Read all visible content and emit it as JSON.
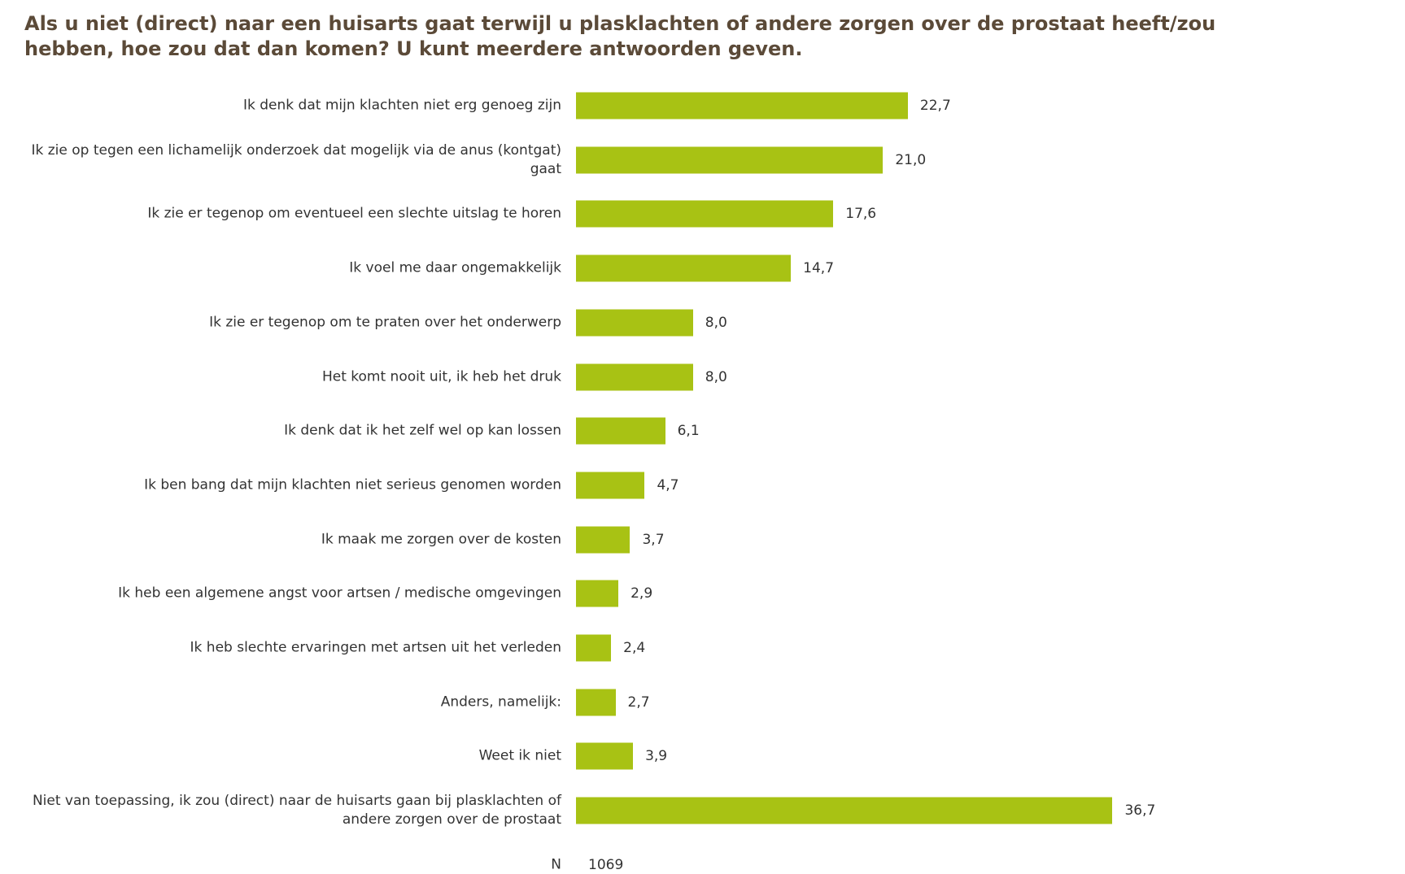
{
  "chart_data": {
    "type": "bar",
    "orientation": "horizontal",
    "title": "Als u niet (direct) naar een huisarts gaat terwijl u plasklachten of andere zorgen over de prostaat heeft/zou hebben, hoe zou dat dan komen? U kunt meerdere antwoorden geven.",
    "categories": [
      "Ik denk dat mijn klachten niet erg genoeg zijn",
      "Ik zie op tegen een lichamelijk onderzoek dat mogelijk via de anus (kontgat) gaat",
      "Ik zie er tegenop om eventueel een slechte uitslag te horen",
      "Ik voel me daar ongemakkelijk",
      "Ik zie er tegenop om te praten over het onderwerp",
      "Het komt nooit uit, ik heb het druk",
      "Ik denk dat ik het zelf wel op kan lossen",
      "Ik ben bang dat mijn klachten niet serieus genomen worden",
      "Ik maak me zorgen over de kosten",
      "Ik heb een algemene angst voor artsen / medische omgevingen",
      "Ik heb slechte ervaringen met artsen uit het verleden",
      "Anders, namelijk:",
      "Weet ik niet",
      "Niet van toepassing, ik zou (direct) naar de huisarts gaan bij plasklachten of andere zorgen over de prostaat"
    ],
    "values": [
      22.7,
      21.0,
      17.6,
      14.7,
      8.0,
      8.0,
      6.1,
      4.7,
      3.7,
      2.9,
      2.4,
      2.7,
      3.9,
      36.7
    ],
    "value_labels": [
      "22,7",
      "21,0",
      "17,6",
      "14,7",
      "8,0",
      "8,0",
      "6,1",
      "4,7",
      "3,7",
      "2,9",
      "2,4",
      "2,7",
      "3,9",
      "36,7"
    ],
    "color": "#a8c214",
    "n_label": "N",
    "n": 1069
  }
}
